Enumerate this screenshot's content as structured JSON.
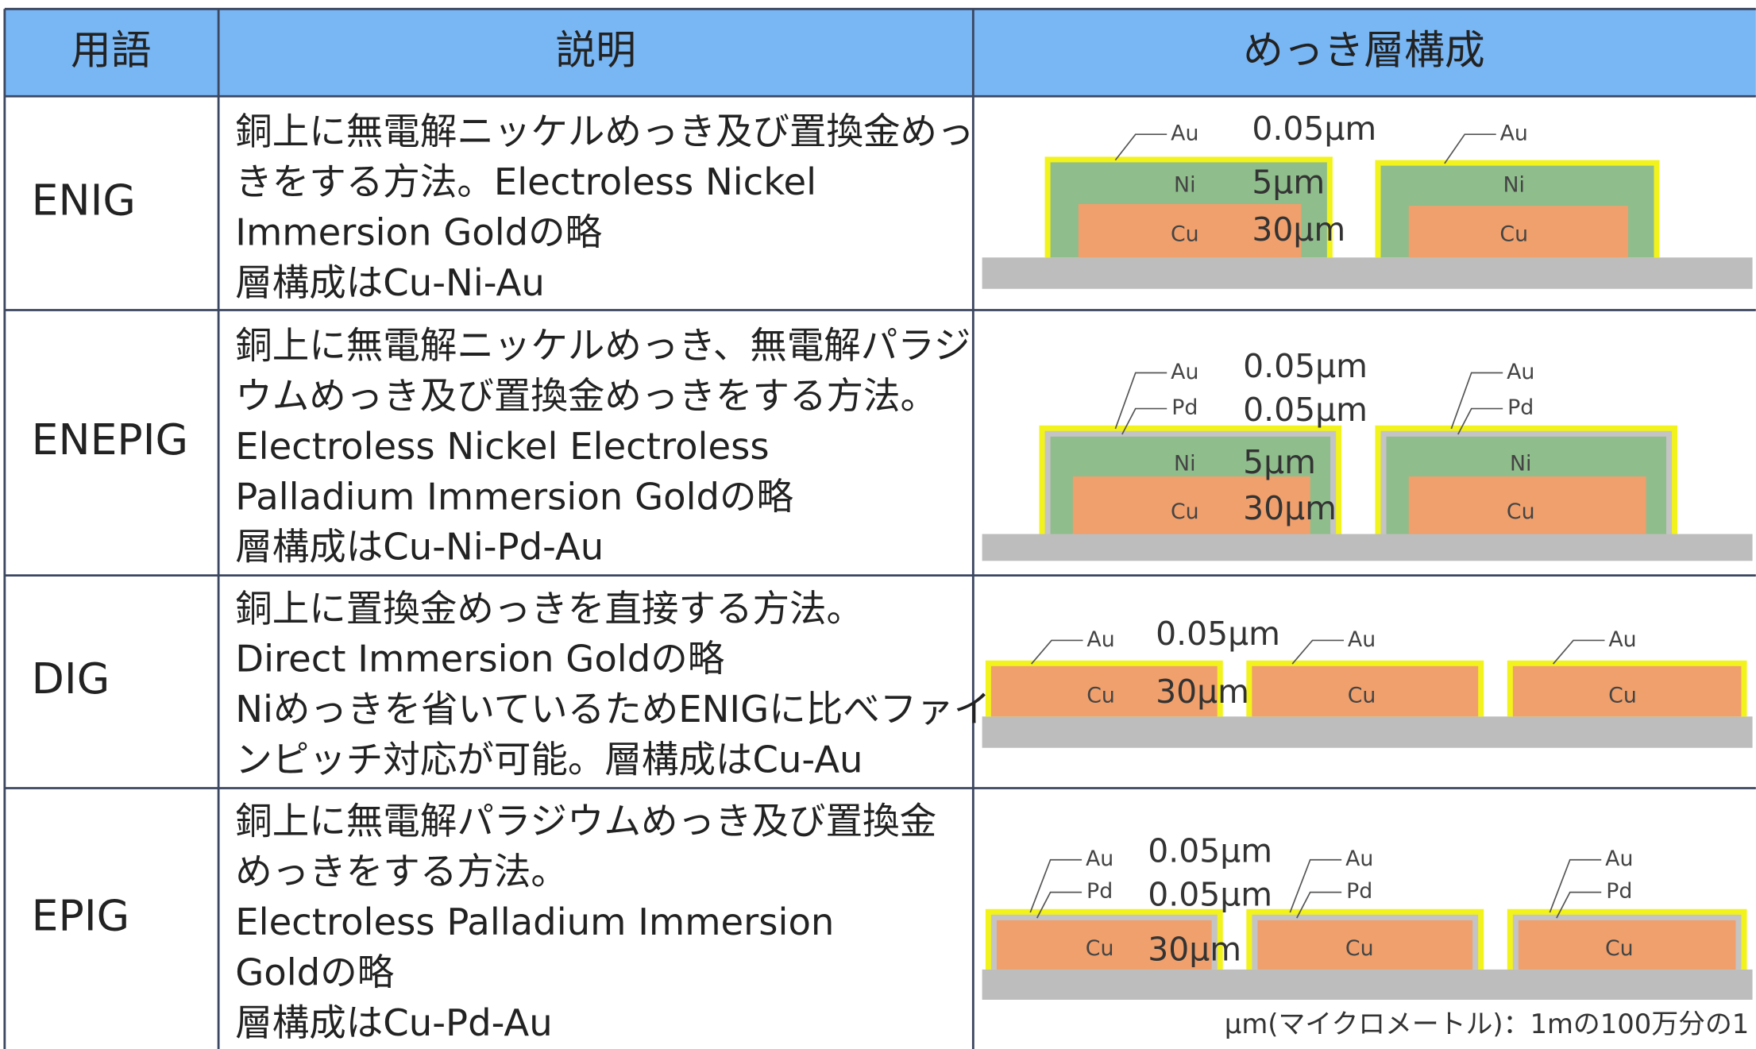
{
  "table": {
    "headers": [
      "用語",
      "説明",
      "めっき層構成"
    ],
    "rows": [
      {
        "term": "ENIG",
        "description": [
          "銅上に無電解ニッケルめっき及び置換金めっ",
          "きをする方法。Electroless Nickel",
          "Immersion Goldの略",
          "層構成はCu-Ni-Au"
        ],
        "layers": [
          "Au",
          "Ni",
          "Cu"
        ],
        "thickness": [
          "0.05μm",
          "5μm",
          "30μm"
        ]
      },
      {
        "term": "ENEPIG",
        "description": [
          "銅上に無電解ニッケルめっき、無電解パラジ",
          "ウムめっき及び置換金めっきをする方法。",
          "Electroless Nickel Electroless",
          "Palladium Immersion Goldの略",
          "層構成はCu-Ni-Pd-Au"
        ],
        "layers": [
          "Au",
          "Pd",
          "Ni",
          "Cu"
        ],
        "thickness": [
          "0.05μm",
          "0.05μm",
          "5μm",
          "30μm"
        ]
      },
      {
        "term": "DIG",
        "description": [
          "銅上に置換金めっきを直接する方法。",
          "Direct Immersion Goldの略",
          "Niめっきを省いているためENIGに比べファイ",
          "ンピッチ対応が可能。層構成はCu-Au"
        ],
        "layers": [
          "Au",
          "Cu"
        ],
        "thickness": [
          "0.05μm",
          "30μm"
        ]
      },
      {
        "term": "EPIG",
        "description": [
          "銅上に無電解パラジウムめっき及び置換金",
          "めっきをする方法。",
          "Electroless Palladium Immersion",
          "Goldの略",
          "層構成はCu-Pd-Au"
        ],
        "layers": [
          "Au",
          "Pd",
          "Cu"
        ],
        "thickness": [
          "0.05μm",
          "0.05μm",
          "30μm"
        ]
      }
    ]
  },
  "footnote": "μm(マイクロメートル)：1mの100万分の1"
}
